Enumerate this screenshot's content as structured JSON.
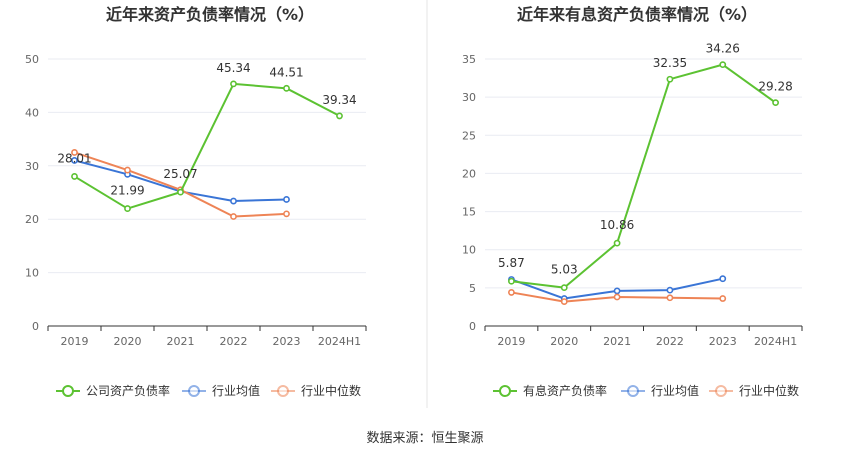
{
  "source_text": "数据来源：恒生聚源",
  "colors": {
    "company": "#5cc232",
    "industry_avg": "#3a75d6",
    "industry_median": "#ee8456",
    "axis": "#333333",
    "grid": "#e9ebf2",
    "divider": "#e4e4e4"
  },
  "chart_data": [
    {
      "type": "line",
      "title": "近年来资产负债率情况（%）",
      "categories": [
        "2019",
        "2020",
        "2021",
        "2022",
        "2023",
        "2024H1"
      ],
      "ylim": [
        0,
        50
      ],
      "yticks": [
        0,
        10,
        20,
        30,
        40,
        50
      ],
      "grid": true,
      "legend_position": "bottom",
      "series": [
        {
          "name": "公司资产负债率",
          "color_key": "company",
          "labeled": true,
          "values": [
            28.01,
            21.99,
            25.07,
            45.34,
            44.51,
            39.34
          ]
        },
        {
          "name": "行业均值",
          "color_key": "industry_avg",
          "labeled": false,
          "values": [
            31.0,
            28.4,
            25.2,
            23.4,
            23.7,
            null
          ]
        },
        {
          "name": "行业中位数",
          "color_key": "industry_median",
          "labeled": false,
          "values": [
            32.5,
            29.2,
            25.5,
            20.5,
            21.0,
            null
          ]
        }
      ]
    },
    {
      "type": "line",
      "title": "近年来有息资产负债率情况（%）",
      "categories": [
        "2019",
        "2020",
        "2021",
        "2022",
        "2023",
        "2024H1"
      ],
      "ylim": [
        0,
        35
      ],
      "yticks": [
        0,
        5,
        10,
        15,
        20,
        25,
        30,
        35
      ],
      "grid": true,
      "legend_position": "bottom",
      "series": [
        {
          "name": "有息资产负债率",
          "color_key": "company",
          "labeled": true,
          "values": [
            5.87,
            5.03,
            10.86,
            32.35,
            34.26,
            29.28
          ]
        },
        {
          "name": "行业均值",
          "color_key": "industry_avg",
          "labeled": false,
          "values": [
            6.1,
            3.6,
            4.6,
            4.7,
            6.2,
            null
          ]
        },
        {
          "name": "行业中位数",
          "color_key": "industry_median",
          "labeled": false,
          "values": [
            4.4,
            3.2,
            3.8,
            3.7,
            3.6,
            null
          ]
        }
      ]
    }
  ]
}
